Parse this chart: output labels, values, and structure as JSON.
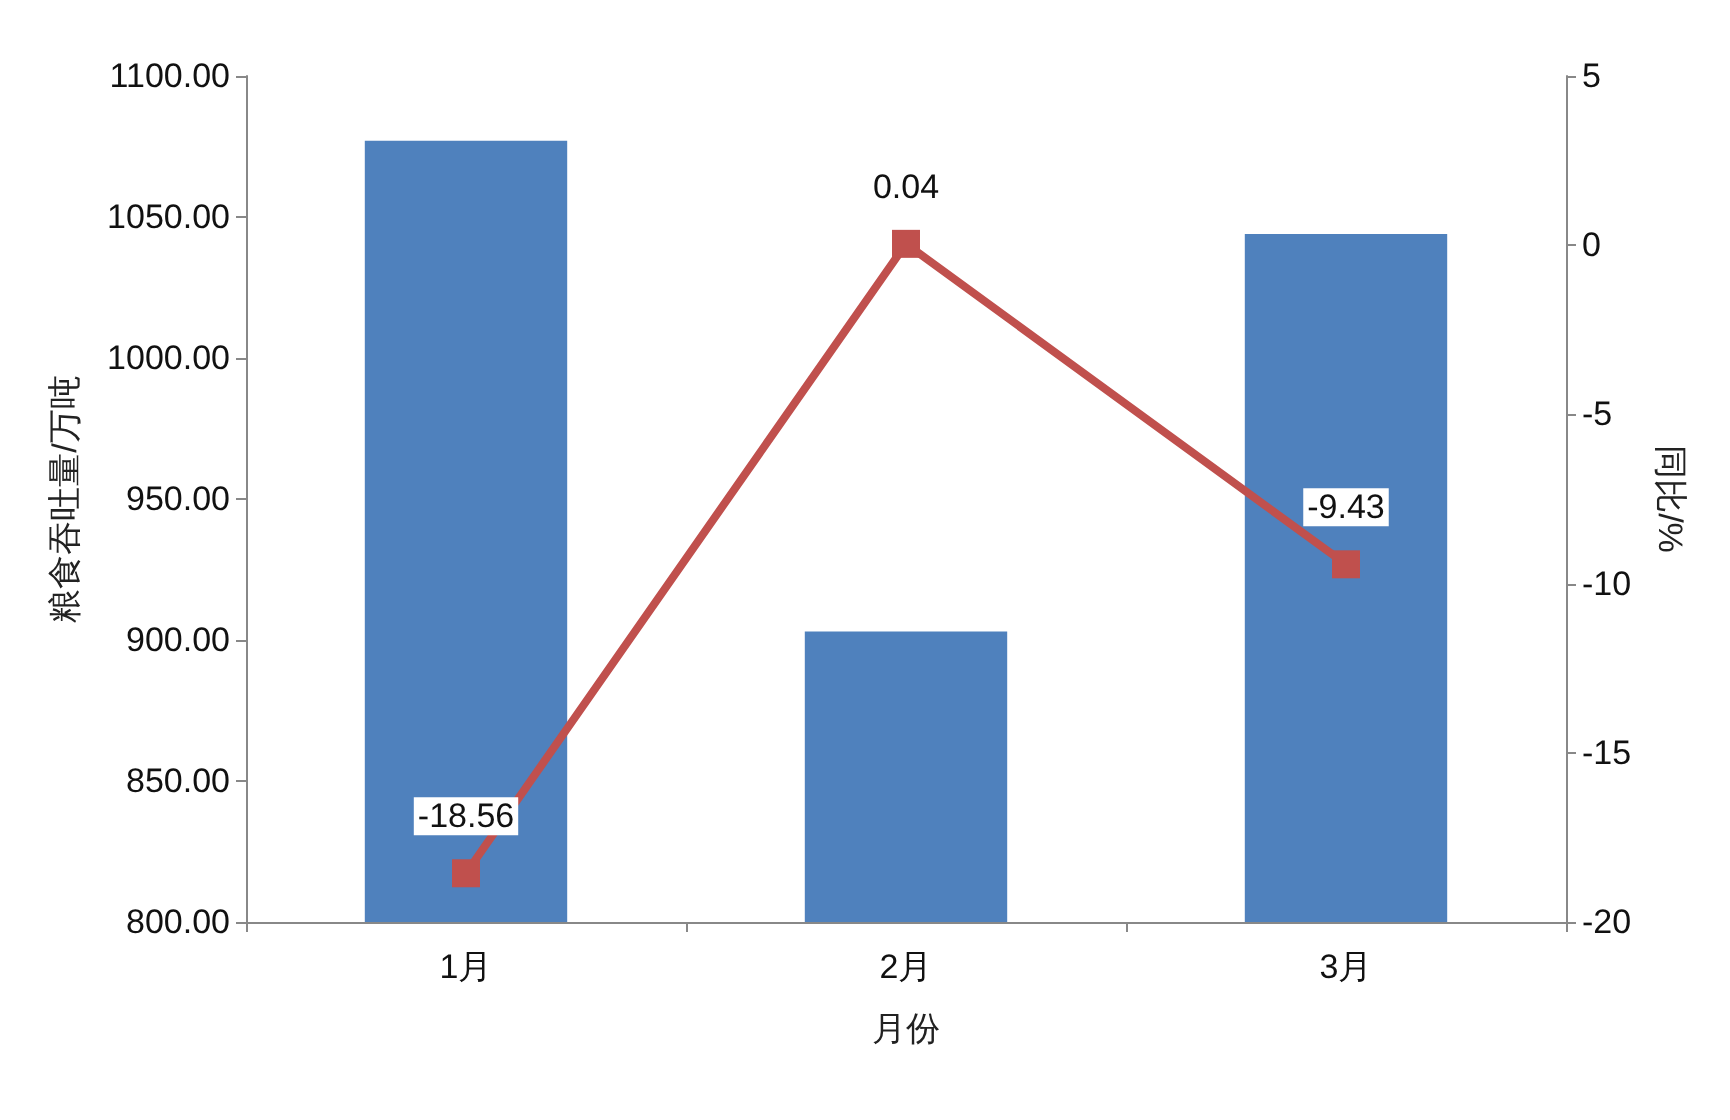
{
  "chart_data": {
    "type": "bar",
    "xlabel": "月份",
    "ylabel": "粮食吞吐量/万吨",
    "y2label": "同比/%",
    "categories": [
      "1月",
      "2月",
      "3月"
    ],
    "series": [
      {
        "color": "#4f81bd",
        "values": [
          1077,
          903,
          1044
        ]
      },
      {
        "type": "line",
        "axis": "y2",
        "color": "#c0504d",
        "values": [
          -18.56,
          0.04,
          -9.43
        ],
        "value_labels": [
          "-18.56",
          "0.04",
          "-9.43"
        ],
        "marker": "square",
        "line_style": "solid"
      }
    ],
    "ylim": [
      800,
      1100
    ],
    "yticks": [
      {
        "value": 800,
        "label": "800.00"
      },
      {
        "value": 850,
        "label": "850.00"
      },
      {
        "value": 900,
        "label": "900.00"
      },
      {
        "value": 950,
        "label": "950.00"
      },
      {
        "value": 1000,
        "label": "1000.00"
      },
      {
        "value": 1050,
        "label": "1050.00"
      },
      {
        "value": 1100,
        "label": "1100.00"
      }
    ],
    "y2lim": [
      -20,
      5
    ],
    "y2ticks": [
      -20,
      -15,
      -10,
      -5,
      0,
      5
    ],
    "grid": false
  }
}
